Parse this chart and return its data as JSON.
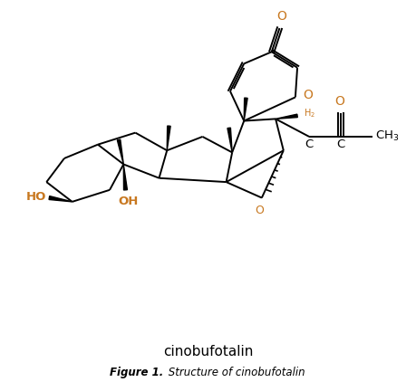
{
  "bg_color": "#ffffff",
  "line_color": "#000000",
  "accent_color": "#c87820",
  "fig_width": 4.6,
  "fig_height": 4.22,
  "dpi": 100,
  "title": "cinobufotalin",
  "fig_label": "Figure 1.",
  "fig_caption": " Structure of cinobufotalin"
}
